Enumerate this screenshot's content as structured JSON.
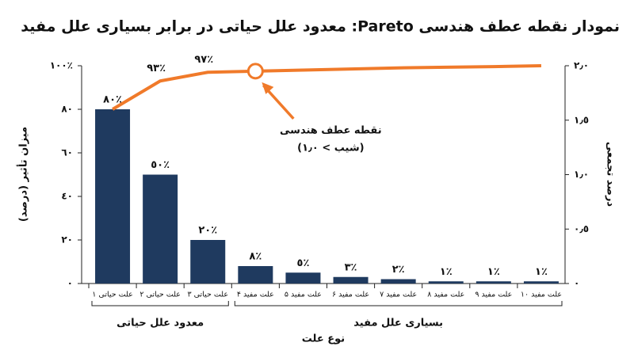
{
  "chart_data": {
    "type": "pareto",
    "title": "نمودار نقطه عطف هندسی Pareto: معدود علل حیاتی در برابر بسیاری علل مفید",
    "y_label": "میزان تأثیر (درصد)",
    "y2_label": "درصد تجمعی",
    "x_label": "نوع علت",
    "categories": [
      "علت حیاتی ۱",
      "علت حیاتی ۲",
      "علت حیاتی ۳",
      "علت مفید ۴",
      "علت مفید ۵",
      "علت مفید ۶",
      "علت مفید ۷",
      "علت مفید ۸",
      "علت مفید ۹",
      "علت مفید ۱۰"
    ],
    "groups": [
      {
        "name": "معدود علل حیاتی",
        "size": 3
      },
      {
        "name": "بسیاری علل مفید",
        "size": 7
      }
    ],
    "series": [
      {
        "kind": "bar",
        "color": "#1f3a5f",
        "values": [
          80,
          50,
          20,
          8,
          5,
          3,
          2,
          1,
          1,
          1
        ],
        "value_labels": [
          "٨٠٪",
          "٥٠٪",
          "٢٠٪",
          "٨٪",
          "٥٪",
          "٣٪",
          "٢٪",
          "١٪",
          "١٪",
          "١٪"
        ]
      },
      {
        "kind": "line",
        "color": "#f07a2a",
        "values": [
          80,
          93,
          97,
          97.5,
          98,
          98.5,
          99,
          99.3,
          99.6,
          100
        ],
        "value_labels": [
          null,
          "٩٣٪",
          "٩٧٪",
          null,
          null,
          null,
          null,
          null,
          null,
          null
        ]
      }
    ],
    "knee": {
      "category": "علت مفید ۴",
      "text": "نقطه عطف هندسی",
      "subtext": "(شیب > ١٫٠)"
    },
    "ylim": [
      0,
      100
    ],
    "yticks": [
      {
        "value": 0,
        "label": "٠"
      },
      {
        "value": 20,
        "label": "٢٠"
      },
      {
        "value": 40,
        "label": "٤٠"
      },
      {
        "value": 60,
        "label": "٦٠"
      },
      {
        "value": 80,
        "label": "٨٠"
      },
      {
        "value": 100,
        "label": "١٠٠٪"
      }
    ],
    "y2lim": [
      0,
      2
    ],
    "y2ticks": [
      {
        "value": 0,
        "label": "٠"
      },
      {
        "value": 0.5,
        "label": "٠٫٥"
      },
      {
        "value": 1,
        "label": "١٫٠"
      },
      {
        "value": 1.5,
        "label": "١٫٥"
      },
      {
        "value": 2,
        "label": "٢٫٠"
      }
    ]
  }
}
